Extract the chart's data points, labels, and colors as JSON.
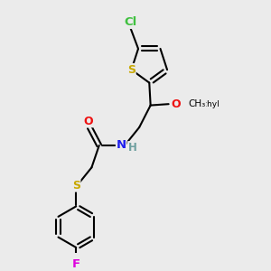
{
  "background_color": "#ebebeb",
  "atom_colors": {
    "C": "#000000",
    "H": "#6fa0a0",
    "N": "#2020ee",
    "O": "#ee1010",
    "S": "#c8a800",
    "F": "#dd00dd",
    "Cl": "#40c040"
  },
  "bond_color": "#000000",
  "bond_width": 1.5,
  "font_size": 8.5,
  "figsize": [
    3.0,
    3.0
  ],
  "dpi": 100,
  "xlim": [
    0,
    10
  ],
  "ylim": [
    0,
    10
  ]
}
